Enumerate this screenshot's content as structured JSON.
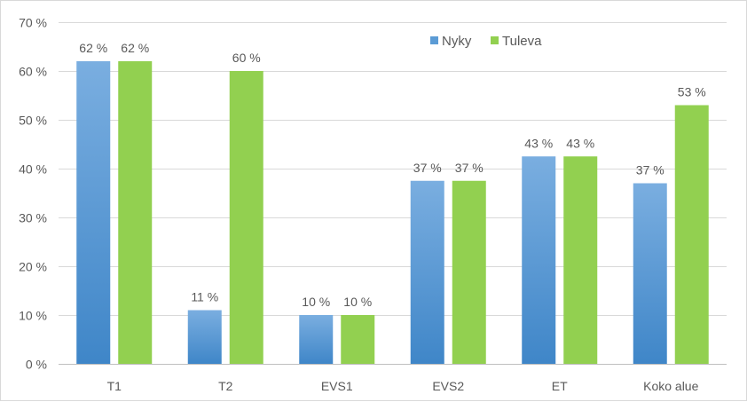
{
  "chart_data": {
    "type": "bar",
    "categories": [
      "T1",
      "T2",
      "EVS1",
      "EVS2",
      "ET",
      "Koko alue"
    ],
    "series": [
      {
        "name": "Nyky",
        "values": [
          62,
          11,
          10,
          37.5,
          42.5,
          37
        ],
        "data_labels": [
          "62 %",
          "11 %",
          "10 %",
          "37 %",
          "43 %",
          "37 %"
        ],
        "color": "#5b9bd5"
      },
      {
        "name": "Tuleva",
        "values": [
          62,
          60,
          10,
          37.5,
          42.5,
          53
        ],
        "data_labels": [
          "62 %",
          "60 %",
          "10 %",
          "37 %",
          "43 %",
          "53 %"
        ],
        "color": "#92d050"
      }
    ],
    "ylim": [
      0,
      70
    ],
    "yticks": [
      0,
      10,
      20,
      30,
      40,
      50,
      60,
      70
    ],
    "ytick_labels": [
      "0 %",
      "10 %",
      "20 %",
      "30 %",
      "40 %",
      "50 %",
      "60 %",
      "70 %"
    ],
    "grid": true,
    "legend_position": "top-right",
    "title": "",
    "xlabel": "",
    "ylabel": ""
  }
}
